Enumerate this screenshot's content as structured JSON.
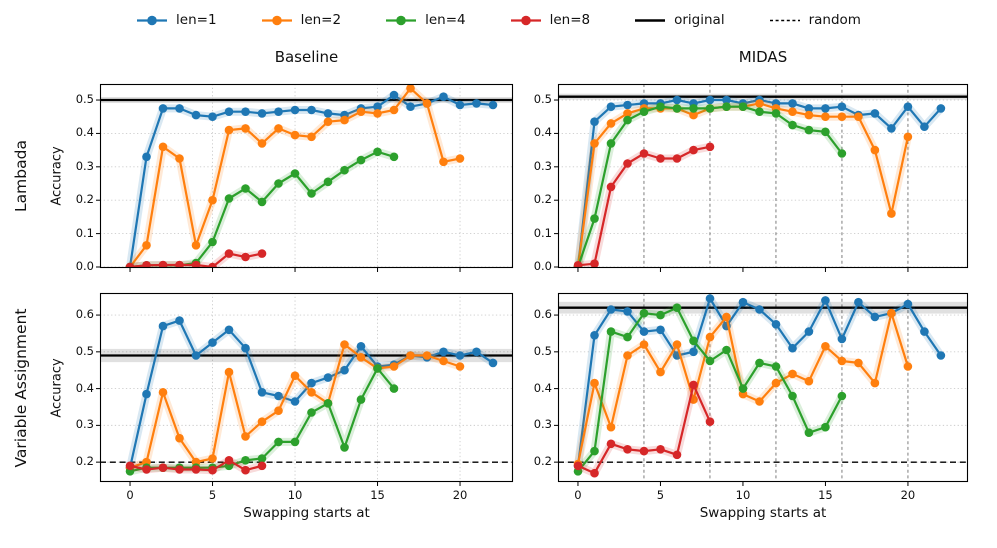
{
  "figure_title": "",
  "columns": [
    "Baseline",
    "MIDAS"
  ],
  "rows": [
    "Lambada",
    "Variable Assignment"
  ],
  "ylabel": "Accuracy",
  "xlabel": "Swapping starts at",
  "legend": {
    "items": [
      {
        "label": "len=1",
        "color": "#1f77b4",
        "style": "marker"
      },
      {
        "label": "len=2",
        "color": "#ff7f0e",
        "style": "marker"
      },
      {
        "label": "len=4",
        "color": "#2ca02c",
        "style": "marker"
      },
      {
        "label": "len=8",
        "color": "#d62728",
        "style": "marker"
      },
      {
        "label": "original",
        "color": "#000000",
        "style": "solid"
      },
      {
        "label": "random",
        "color": "#000000",
        "style": "dashed"
      }
    ]
  },
  "chart_data": [
    {
      "id": "lambada-baseline",
      "row": "Lambada",
      "col": "Baseline",
      "type": "line",
      "xlim": [
        -1.82,
        23.21
      ],
      "ylim": [
        -0.003,
        0.548
      ],
      "xticks": [
        0,
        5,
        10,
        15,
        20
      ],
      "xtick_labels": null,
      "yticks": [
        "0.0",
        "0.1",
        "0.2",
        "0.3",
        "0.4",
        "0.5"
      ],
      "grid_x": [
        5,
        10,
        15,
        20
      ],
      "vlines": [],
      "original": 0.5,
      "original_band": 0.009,
      "random": null,
      "series": [
        {
          "name": "len=1",
          "color": "#1f77b4",
          "x_start": 0,
          "y": [
            0,
            0.33,
            0.475,
            0.475,
            0.455,
            0.45,
            0.465,
            0.465,
            0.46,
            0.465,
            0.47,
            0.47,
            0.46,
            0.455,
            0.475,
            0.48,
            0.515,
            0.48,
            0.49,
            0.51,
            0.485,
            0.49,
            0.485
          ]
        },
        {
          "name": "len=2",
          "color": "#ff7f0e",
          "x_start": 0,
          "y": [
            0,
            0.065,
            0.36,
            0.325,
            0.065,
            0.2,
            0.41,
            0.415,
            0.37,
            0.415,
            0.395,
            0.39,
            0.435,
            0.44,
            0.465,
            0.46,
            0.47,
            0.535,
            0.49,
            0.315,
            0.325
          ]
        },
        {
          "name": "len=4",
          "color": "#2ca02c",
          "x_start": 0,
          "y": [
            0,
            0.005,
            0.005,
            0.005,
            0.012,
            0.075,
            0.205,
            0.235,
            0.195,
            0.25,
            0.28,
            0.22,
            0.255,
            0.29,
            0.32,
            0.345,
            0.33
          ]
        },
        {
          "name": "len=8",
          "color": "#d62728",
          "x_start": 0,
          "y": [
            0,
            0.005,
            0.006,
            0.006,
            0.006,
            0,
            0.04,
            0.03,
            0.04
          ]
        }
      ]
    },
    {
      "id": "lambada-midas",
      "row": "Lambada",
      "col": "MIDAS",
      "type": "line",
      "xlim": [
        -1.21,
        23.64
      ],
      "ylim": [
        -0.003,
        0.548
      ],
      "xticks": [
        0,
        5,
        10,
        15,
        20
      ],
      "xtick_labels": null,
      "yticks": [
        "0.0",
        "0.1",
        "0.2",
        "0.3",
        "0.4",
        "0.5"
      ],
      "grid_x": [],
      "vlines": [
        4,
        8,
        12,
        16,
        20
      ],
      "original": 0.51,
      "original_band": 0.009,
      "random": null,
      "series": [
        {
          "name": "len=1",
          "color": "#1f77b4",
          "x_start": 0,
          "y": [
            0,
            0.435,
            0.48,
            0.485,
            0.49,
            0.49,
            0.5,
            0.49,
            0.5,
            0.5,
            0.49,
            0.5,
            0.49,
            0.49,
            0.475,
            0.475,
            0.48,
            0.455,
            0.46,
            0.415,
            0.48,
            0.42,
            0.475
          ]
        },
        {
          "name": "len=2",
          "color": "#ff7f0e",
          "x_start": 0,
          "y": [
            0,
            0.37,
            0.43,
            0.46,
            0.475,
            0.475,
            0.475,
            0.455,
            0.475,
            0.48,
            0.48,
            0.49,
            0.475,
            0.465,
            0.455,
            0.45,
            0.45,
            0.45,
            0.35,
            0.16,
            0.39
          ]
        },
        {
          "name": "len=4",
          "color": "#2ca02c",
          "x_start": 0,
          "y": [
            0,
            0.145,
            0.37,
            0.44,
            0.465,
            0.48,
            0.475,
            0.475,
            0.475,
            0.48,
            0.48,
            0.465,
            0.46,
            0.425,
            0.41,
            0.405,
            0.34
          ]
        },
        {
          "name": "len=8",
          "color": "#d62728",
          "x_start": 0,
          "y": [
            0.005,
            0.01,
            0.24,
            0.31,
            0.34,
            0.325,
            0.325,
            0.35,
            0.36
          ]
        }
      ]
    },
    {
      "id": "va-baseline",
      "row": "Variable Assignment",
      "col": "Baseline",
      "type": "line",
      "xlim": [
        -1.82,
        23.21
      ],
      "ylim": [
        0.146,
        0.66
      ],
      "xticks": [
        0,
        5,
        10,
        15,
        20
      ],
      "xtick_labels": [
        "0",
        "5",
        "10",
        "15",
        "20"
      ],
      "yticks": [
        "0.2",
        "0.3",
        "0.4",
        "0.5",
        "0.6"
      ],
      "grid_x": [
        5,
        10,
        15,
        20
      ],
      "vlines": [],
      "original": 0.49,
      "original_band": 0.018,
      "random": 0.2,
      "series": [
        {
          "name": "len=1",
          "color": "#1f77b4",
          "x_start": 0,
          "y": [
            0.185,
            0.385,
            0.57,
            0.585,
            0.49,
            0.525,
            0.56,
            0.51,
            0.39,
            0.38,
            0.365,
            0.415,
            0.43,
            0.45,
            0.515,
            0.46,
            0.465,
            0.49,
            0.485,
            0.5,
            0.49,
            0.5,
            0.47
          ]
        },
        {
          "name": "len=2",
          "color": "#ff7f0e",
          "x_start": 0,
          "y": [
            0.185,
            0.2,
            0.39,
            0.265,
            0.2,
            0.21,
            0.445,
            0.27,
            0.31,
            0.34,
            0.435,
            0.39,
            0.36,
            0.52,
            0.485,
            0.455,
            0.46,
            0.49,
            0.49,
            0.475,
            0.46
          ]
        },
        {
          "name": "len=4",
          "color": "#2ca02c",
          "x_start": 0,
          "y": [
            0.175,
            0.185,
            0.185,
            0.185,
            0.185,
            0.185,
            0.19,
            0.205,
            0.21,
            0.255,
            0.255,
            0.335,
            0.36,
            0.24,
            0.37,
            0.455,
            0.4
          ]
        },
        {
          "name": "len=8",
          "color": "#d62728",
          "x_start": 0,
          "y": [
            0.19,
            0.18,
            0.185,
            0.18,
            0.18,
            0.178,
            0.205,
            0.178,
            0.19
          ]
        }
      ]
    },
    {
      "id": "va-midas",
      "row": "Variable Assignment",
      "col": "MIDAS",
      "type": "line",
      "xlim": [
        -1.21,
        23.64
      ],
      "ylim": [
        0.146,
        0.66
      ],
      "xticks": [
        0,
        5,
        10,
        15,
        20
      ],
      "xtick_labels": [
        "0",
        "5",
        "10",
        "15",
        "20"
      ],
      "yticks": [
        "0.2",
        "0.3",
        "0.4",
        "0.5",
        "0.6"
      ],
      "grid_x": [],
      "vlines": [
        4,
        8,
        12,
        16,
        20
      ],
      "original": 0.62,
      "original_band": 0.016,
      "random": 0.2,
      "series": [
        {
          "name": "len=1",
          "color": "#1f77b4",
          "x_start": 0,
          "y": [
            0.19,
            0.545,
            0.615,
            0.61,
            0.555,
            0.56,
            0.49,
            0.5,
            0.645,
            0.57,
            0.635,
            0.615,
            0.575,
            0.51,
            0.555,
            0.64,
            0.535,
            0.635,
            0.595,
            0.605,
            0.63,
            0.555,
            0.49
          ]
        },
        {
          "name": "len=2",
          "color": "#ff7f0e",
          "x_start": 0,
          "y": [
            0.195,
            0.415,
            0.295,
            0.49,
            0.52,
            0.445,
            0.52,
            0.37,
            0.54,
            0.595,
            0.385,
            0.365,
            0.415,
            0.44,
            0.42,
            0.515,
            0.475,
            0.47,
            0.415,
            0.605,
            0.46
          ]
        },
        {
          "name": "len=4",
          "color": "#2ca02c",
          "x_start": 0,
          "y": [
            0.175,
            0.23,
            0.555,
            0.54,
            0.605,
            0.6,
            0.62,
            0.53,
            0.475,
            0.505,
            0.4,
            0.47,
            0.46,
            0.38,
            0.28,
            0.295,
            0.38
          ]
        },
        {
          "name": "len=8",
          "color": "#d62728",
          "x_start": 0,
          "y": [
            0.19,
            0.17,
            0.25,
            0.235,
            0.23,
            0.235,
            0.22,
            0.41,
            0.31
          ]
        }
      ]
    }
  ],
  "style": {
    "grid_color": "#cccccc",
    "vline_color": "#6e6e6e",
    "original_color": "#000000",
    "random_color": "#000000",
    "band_opacity": 0.12,
    "series_band_opacity": 0.17
  }
}
